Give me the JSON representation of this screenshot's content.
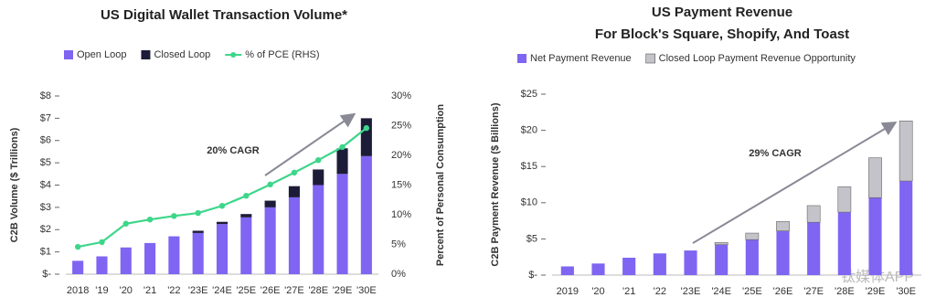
{
  "chart_data": [
    {
      "type": "bar",
      "stacked": true,
      "title": "US Digital Wallet Transaction Volume*",
      "y_label": "C2B Volume ($ Trillions)",
      "y2_label": "Percent of Personal Consumption",
      "annotation": "20% CAGR",
      "categories": [
        "2018",
        "'19",
        "'20",
        "'21",
        "'22",
        "'23E",
        "'24E",
        "'25E",
        "'26E",
        "'27E",
        "'28E",
        "'29E",
        "'30E"
      ],
      "series": [
        {
          "name": "Open Loop",
          "color": "#7f65f2",
          "values": [
            0.6,
            0.8,
            1.2,
            1.4,
            1.7,
            1.85,
            2.25,
            2.55,
            3.0,
            3.45,
            4.0,
            4.5,
            5.3
          ]
        },
        {
          "name": "Closed Loop",
          "color": "#1c1c38",
          "values": [
            0,
            0,
            0,
            0,
            0,
            0.1,
            0.1,
            0.15,
            0.3,
            0.5,
            0.7,
            1.15,
            1.7
          ]
        },
        {
          "name": "% of PCE (RHS)",
          "type": "line",
          "axis": "y2",
          "color": "#3dd68a",
          "values": [
            4.6,
            5.4,
            8.5,
            9.2,
            9.8,
            10.3,
            11.5,
            13.2,
            15.1,
            17.1,
            19.2,
            21.4,
            24.6
          ]
        }
      ],
      "ylim": [
        0,
        8
      ],
      "yticks": [
        {
          "value": 0,
          "label": "$-"
        },
        {
          "value": 1,
          "label": "$1"
        },
        {
          "value": 2,
          "label": "$2"
        },
        {
          "value": 3,
          "label": "$3"
        },
        {
          "value": 4,
          "label": "$4"
        },
        {
          "value": 5,
          "label": "$5"
        },
        {
          "value": 6,
          "label": "$6"
        },
        {
          "value": 7,
          "label": "$7"
        },
        {
          "value": 8,
          "label": "$8"
        }
      ],
      "y2lim": [
        0,
        30
      ],
      "y2ticks": [
        {
          "value": 0,
          "label": "0%"
        },
        {
          "value": 5,
          "label": "5%"
        },
        {
          "value": 10,
          "label": "10%"
        },
        {
          "value": 15,
          "label": "15%"
        },
        {
          "value": 20,
          "label": "20%"
        },
        {
          "value": 25,
          "label": "25%"
        },
        {
          "value": 30,
          "label": "30%"
        }
      ]
    },
    {
      "type": "bar",
      "stacked": true,
      "title": "US Payment Revenue",
      "subtitle": "For Block's Square, Shopify, And Toast",
      "y_label": "C2B Payment Revenue ($ Billions)",
      "annotation": "29% CAGR",
      "categories": [
        "2019",
        "'20",
        "'21",
        "'22",
        "'23E",
        "'24E",
        "'25E",
        "'26E",
        "'27E",
        "'28E",
        "'29E",
        "'30E"
      ],
      "series": [
        {
          "name": "Net Payment Revenue",
          "color": "#7f65f2",
          "values": [
            1.2,
            1.6,
            2.4,
            3.0,
            3.4,
            4.2,
            4.9,
            6.1,
            7.3,
            8.7,
            10.7,
            13.0
          ]
        },
        {
          "name": "Closed Loop Payment Revenue Opportunity",
          "color": "#c4c3ca",
          "values": [
            0,
            0,
            0,
            0,
            0,
            0.3,
            0.9,
            1.3,
            2.3,
            3.5,
            5.5,
            8.3
          ]
        }
      ],
      "ylim": [
        0,
        25
      ],
      "yticks": [
        {
          "value": 0,
          "label": "$-"
        },
        {
          "value": 5,
          "label": "$5"
        },
        {
          "value": 10,
          "label": "$10"
        },
        {
          "value": 15,
          "label": "$15"
        },
        {
          "value": 20,
          "label": "$20"
        },
        {
          "value": 25,
          "label": "$25"
        }
      ]
    }
  ],
  "watermark": "钛媒体APP"
}
